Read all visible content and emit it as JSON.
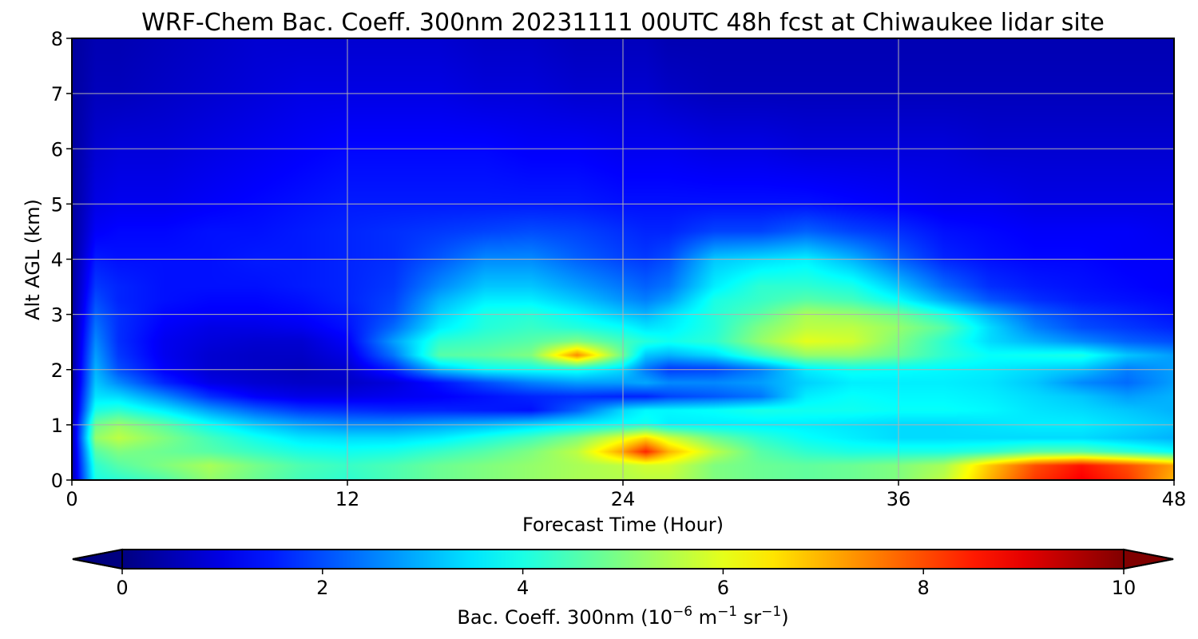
{
  "chart_data": {
    "type": "heatmap",
    "title": "WRF-Chem Bac. Coeff. 300nm  20231111 00UTC 48h fcst at Chiwaukee lidar site",
    "xlabel": "Forecast Time (Hour)",
    "ylabel": "Alt AGL (km)",
    "xlim": [
      0,
      48
    ],
    "ylim": [
      0,
      8
    ],
    "x_ticks": [
      0,
      12,
      24,
      36,
      48
    ],
    "y_ticks": [
      0,
      1,
      2,
      3,
      4,
      5,
      6,
      7,
      8
    ],
    "grid": true,
    "colormap": "jet",
    "colorbar": {
      "orientation": "horizontal",
      "extend": "both",
      "range": [
        0,
        10
      ],
      "ticks": [
        0,
        2,
        4,
        6,
        8,
        10
      ],
      "label_main": "Bac. Coeff. 300nm  (10",
      "label_exp1": "−6",
      "label_mid": " m",
      "label_exp2": "−1",
      "label_mid2": " sr",
      "label_exp3": "−1",
      "label_end": ")"
    },
    "x": [
      0,
      1,
      2,
      4,
      6,
      8,
      10,
      12,
      14,
      16,
      18,
      20,
      22,
      24,
      25,
      26,
      28,
      30,
      32,
      34,
      36,
      38,
      40,
      42,
      44,
      46,
      48
    ],
    "y": [
      0,
      0.25,
      0.5,
      0.75,
      1,
      1.25,
      1.5,
      1.75,
      2,
      2.25,
      2.5,
      2.75,
      3,
      3.25,
      3.5,
      4,
      4.5,
      5,
      6,
      7,
      8
    ],
    "z": [
      [
        0.5,
        4.0,
        4.2,
        4.6,
        5.2,
        4.8,
        4.4,
        4.2,
        4.5,
        4.8,
        5.0,
        5.2,
        5.4,
        5.5,
        5.6,
        5.6,
        5.0,
        4.8,
        4.7,
        4.8,
        5.0,
        5.6,
        7.0,
        8.2,
        8.8,
        8.2,
        7.0
      ],
      [
        0.5,
        4.2,
        4.6,
        5.0,
        5.4,
        4.9,
        4.5,
        4.3,
        4.5,
        4.8,
        5.0,
        5.2,
        5.4,
        5.6,
        5.8,
        5.8,
        5.0,
        4.8,
        4.7,
        4.8,
        5.0,
        5.4,
        6.8,
        8.0,
        8.6,
        8.0,
        7.2
      ],
      [
        0.5,
        4.6,
        5.0,
        4.8,
        4.6,
        4.3,
        4.0,
        3.9,
        4.0,
        4.3,
        4.6,
        5.0,
        5.6,
        7.2,
        8.4,
        7.0,
        5.6,
        4.6,
        4.2,
        4.0,
        4.0,
        4.0,
        4.2,
        4.6,
        4.6,
        4.2,
        3.8
      ],
      [
        0.5,
        5.2,
        5.6,
        5.0,
        4.4,
        3.9,
        3.5,
        3.4,
        3.4,
        3.6,
        4.0,
        4.4,
        5.0,
        6.0,
        6.6,
        5.8,
        4.8,
        4.2,
        3.8,
        3.6,
        3.4,
        3.4,
        3.4,
        3.4,
        3.4,
        3.2,
        3.0
      ],
      [
        0.5,
        4.8,
        5.2,
        4.6,
        3.8,
        3.2,
        2.8,
        2.6,
        2.6,
        2.8,
        3.0,
        3.3,
        3.6,
        3.8,
        3.9,
        3.6,
        3.6,
        3.6,
        3.6,
        3.5,
        3.4,
        3.4,
        3.5,
        3.6,
        3.6,
        3.4,
        3.2
      ],
      [
        0.4,
        4.0,
        4.2,
        3.6,
        2.8,
        2.2,
        1.8,
        1.7,
        1.6,
        1.6,
        1.5,
        1.4,
        2.2,
        3.4,
        3.7,
        3.7,
        3.8,
        4.0,
        3.9,
        3.9,
        3.8,
        3.8,
        3.7,
        3.5,
        3.4,
        3.2,
        3.0
      ],
      [
        0.4,
        3.5,
        3.4,
        2.6,
        1.7,
        1.2,
        1.0,
        1.0,
        1.1,
        1.2,
        1.4,
        1.6,
        1.7,
        1.6,
        1.6,
        1.9,
        2.1,
        2.4,
        3.6,
        3.8,
        3.7,
        3.7,
        3.6,
        3.4,
        3.2,
        2.8,
        3.0
      ],
      [
        0.3,
        3.2,
        2.6,
        1.6,
        1.0,
        0.8,
        0.7,
        0.7,
        0.9,
        1.4,
        2.0,
        2.5,
        2.8,
        2.8,
        2.9,
        2.6,
        2.6,
        2.8,
        3.3,
        3.6,
        3.6,
        3.6,
        3.5,
        3.2,
        2.6,
        2.3,
        2.8
      ],
      [
        0.3,
        3.0,
        2.0,
        1.2,
        0.8,
        0.7,
        0.6,
        0.8,
        1.6,
        3.2,
        3.8,
        3.9,
        4.0,
        3.4,
        2.4,
        1.8,
        1.9,
        2.5,
        3.6,
        3.9,
        3.8,
        3.7,
        3.6,
        3.4,
        3.2,
        2.5,
        2.8
      ],
      [
        0.3,
        2.8,
        1.8,
        1.1,
        0.8,
        0.7,
        0.7,
        1.0,
        2.4,
        4.6,
        4.7,
        5.0,
        7.4,
        4.8,
        3.2,
        3.0,
        3.4,
        4.4,
        5.2,
        5.2,
        4.8,
        4.2,
        3.8,
        3.9,
        4.0,
        3.2,
        2.8
      ],
      [
        0.3,
        2.6,
        1.7,
        1.1,
        0.9,
        0.8,
        0.8,
        1.2,
        2.8,
        4.2,
        4.4,
        4.6,
        5.0,
        4.4,
        4.1,
        3.9,
        4.2,
        5.2,
        6.0,
        5.8,
        5.0,
        4.2,
        3.4,
        3.0,
        2.6,
        2.2,
        2.0
      ],
      [
        0.3,
        2.4,
        1.7,
        1.2,
        1.0,
        1.0,
        1.1,
        1.4,
        2.3,
        3.6,
        4.1,
        4.3,
        4.1,
        3.8,
        3.5,
        3.6,
        4.1,
        5.0,
        5.6,
        5.6,
        5.2,
        4.6,
        3.4,
        2.5,
        2.0,
        1.8,
        1.6
      ],
      [
        0.3,
        2.2,
        1.7,
        1.3,
        1.2,
        1.2,
        1.3,
        1.5,
        2.0,
        3.3,
        4.0,
        4.1,
        3.7,
        3.2,
        3.0,
        3.4,
        4.1,
        4.6,
        5.4,
        5.2,
        4.8,
        4.0,
        3.0,
        2.2,
        1.8,
        1.6,
        1.4
      ],
      [
        0.3,
        2.0,
        1.6,
        1.4,
        1.3,
        1.3,
        1.4,
        1.6,
        1.9,
        3.0,
        3.6,
        3.6,
        3.2,
        2.7,
        2.5,
        2.8,
        4.0,
        4.3,
        4.6,
        4.4,
        3.8,
        2.9,
        2.1,
        1.7,
        1.5,
        1.4,
        1.3
      ],
      [
        0.3,
        1.8,
        1.6,
        1.4,
        1.4,
        1.4,
        1.5,
        1.6,
        1.8,
        2.6,
        3.2,
        3.2,
        2.8,
        2.4,
        2.2,
        2.4,
        3.6,
        4.2,
        4.2,
        4.0,
        3.2,
        2.3,
        1.7,
        1.5,
        1.4,
        1.3,
        1.2
      ],
      [
        0.3,
        1.5,
        1.4,
        1.4,
        1.4,
        1.5,
        1.5,
        1.6,
        1.7,
        2.1,
        2.6,
        2.6,
        2.2,
        1.9,
        1.8,
        2.0,
        3.2,
        3.4,
        3.6,
        3.0,
        2.2,
        1.6,
        1.4,
        1.3,
        1.3,
        1.2,
        1.2
      ],
      [
        0.3,
        1.2,
        1.3,
        1.3,
        1.4,
        1.4,
        1.5,
        1.6,
        1.7,
        1.8,
        1.9,
        2.0,
        1.9,
        1.7,
        1.6,
        1.6,
        1.9,
        1.9,
        2.2,
        1.9,
        1.7,
        1.4,
        1.3,
        1.2,
        1.2,
        1.2,
        1.1
      ],
      [
        0.3,
        1.0,
        1.1,
        1.1,
        1.2,
        1.3,
        1.4,
        1.5,
        1.5,
        1.5,
        1.5,
        1.5,
        1.5,
        1.4,
        1.4,
        1.4,
        1.4,
        1.4,
        1.4,
        1.3,
        1.2,
        1.1,
        1.1,
        1.0,
        1.0,
        1.0,
        1.0
      ],
      [
        0.3,
        0.8,
        0.9,
        0.9,
        1.0,
        1.1,
        1.2,
        1.3,
        1.3,
        1.3,
        1.3,
        1.2,
        1.2,
        1.1,
        1.1,
        1.1,
        1.0,
        1.0,
        0.9,
        0.9,
        0.9,
        0.9,
        0.8,
        0.8,
        0.8,
        0.8,
        0.8
      ],
      [
        0.3,
        0.6,
        0.6,
        0.7,
        0.8,
        0.9,
        1.0,
        1.0,
        1.0,
        1.0,
        0.9,
        0.9,
        0.8,
        0.8,
        0.8,
        0.7,
        0.6,
        0.6,
        0.6,
        0.6,
        0.6,
        0.6,
        0.6,
        0.6,
        0.6,
        0.6,
        0.6
      ],
      [
        0.3,
        0.5,
        0.5,
        0.6,
        0.7,
        0.8,
        0.8,
        0.8,
        0.8,
        0.8,
        0.7,
        0.7,
        0.6,
        0.6,
        0.6,
        0.5,
        0.5,
        0.5,
        0.5,
        0.5,
        0.5,
        0.5,
        0.5,
        0.5,
        0.5,
        0.5,
        0.5
      ]
    ]
  }
}
